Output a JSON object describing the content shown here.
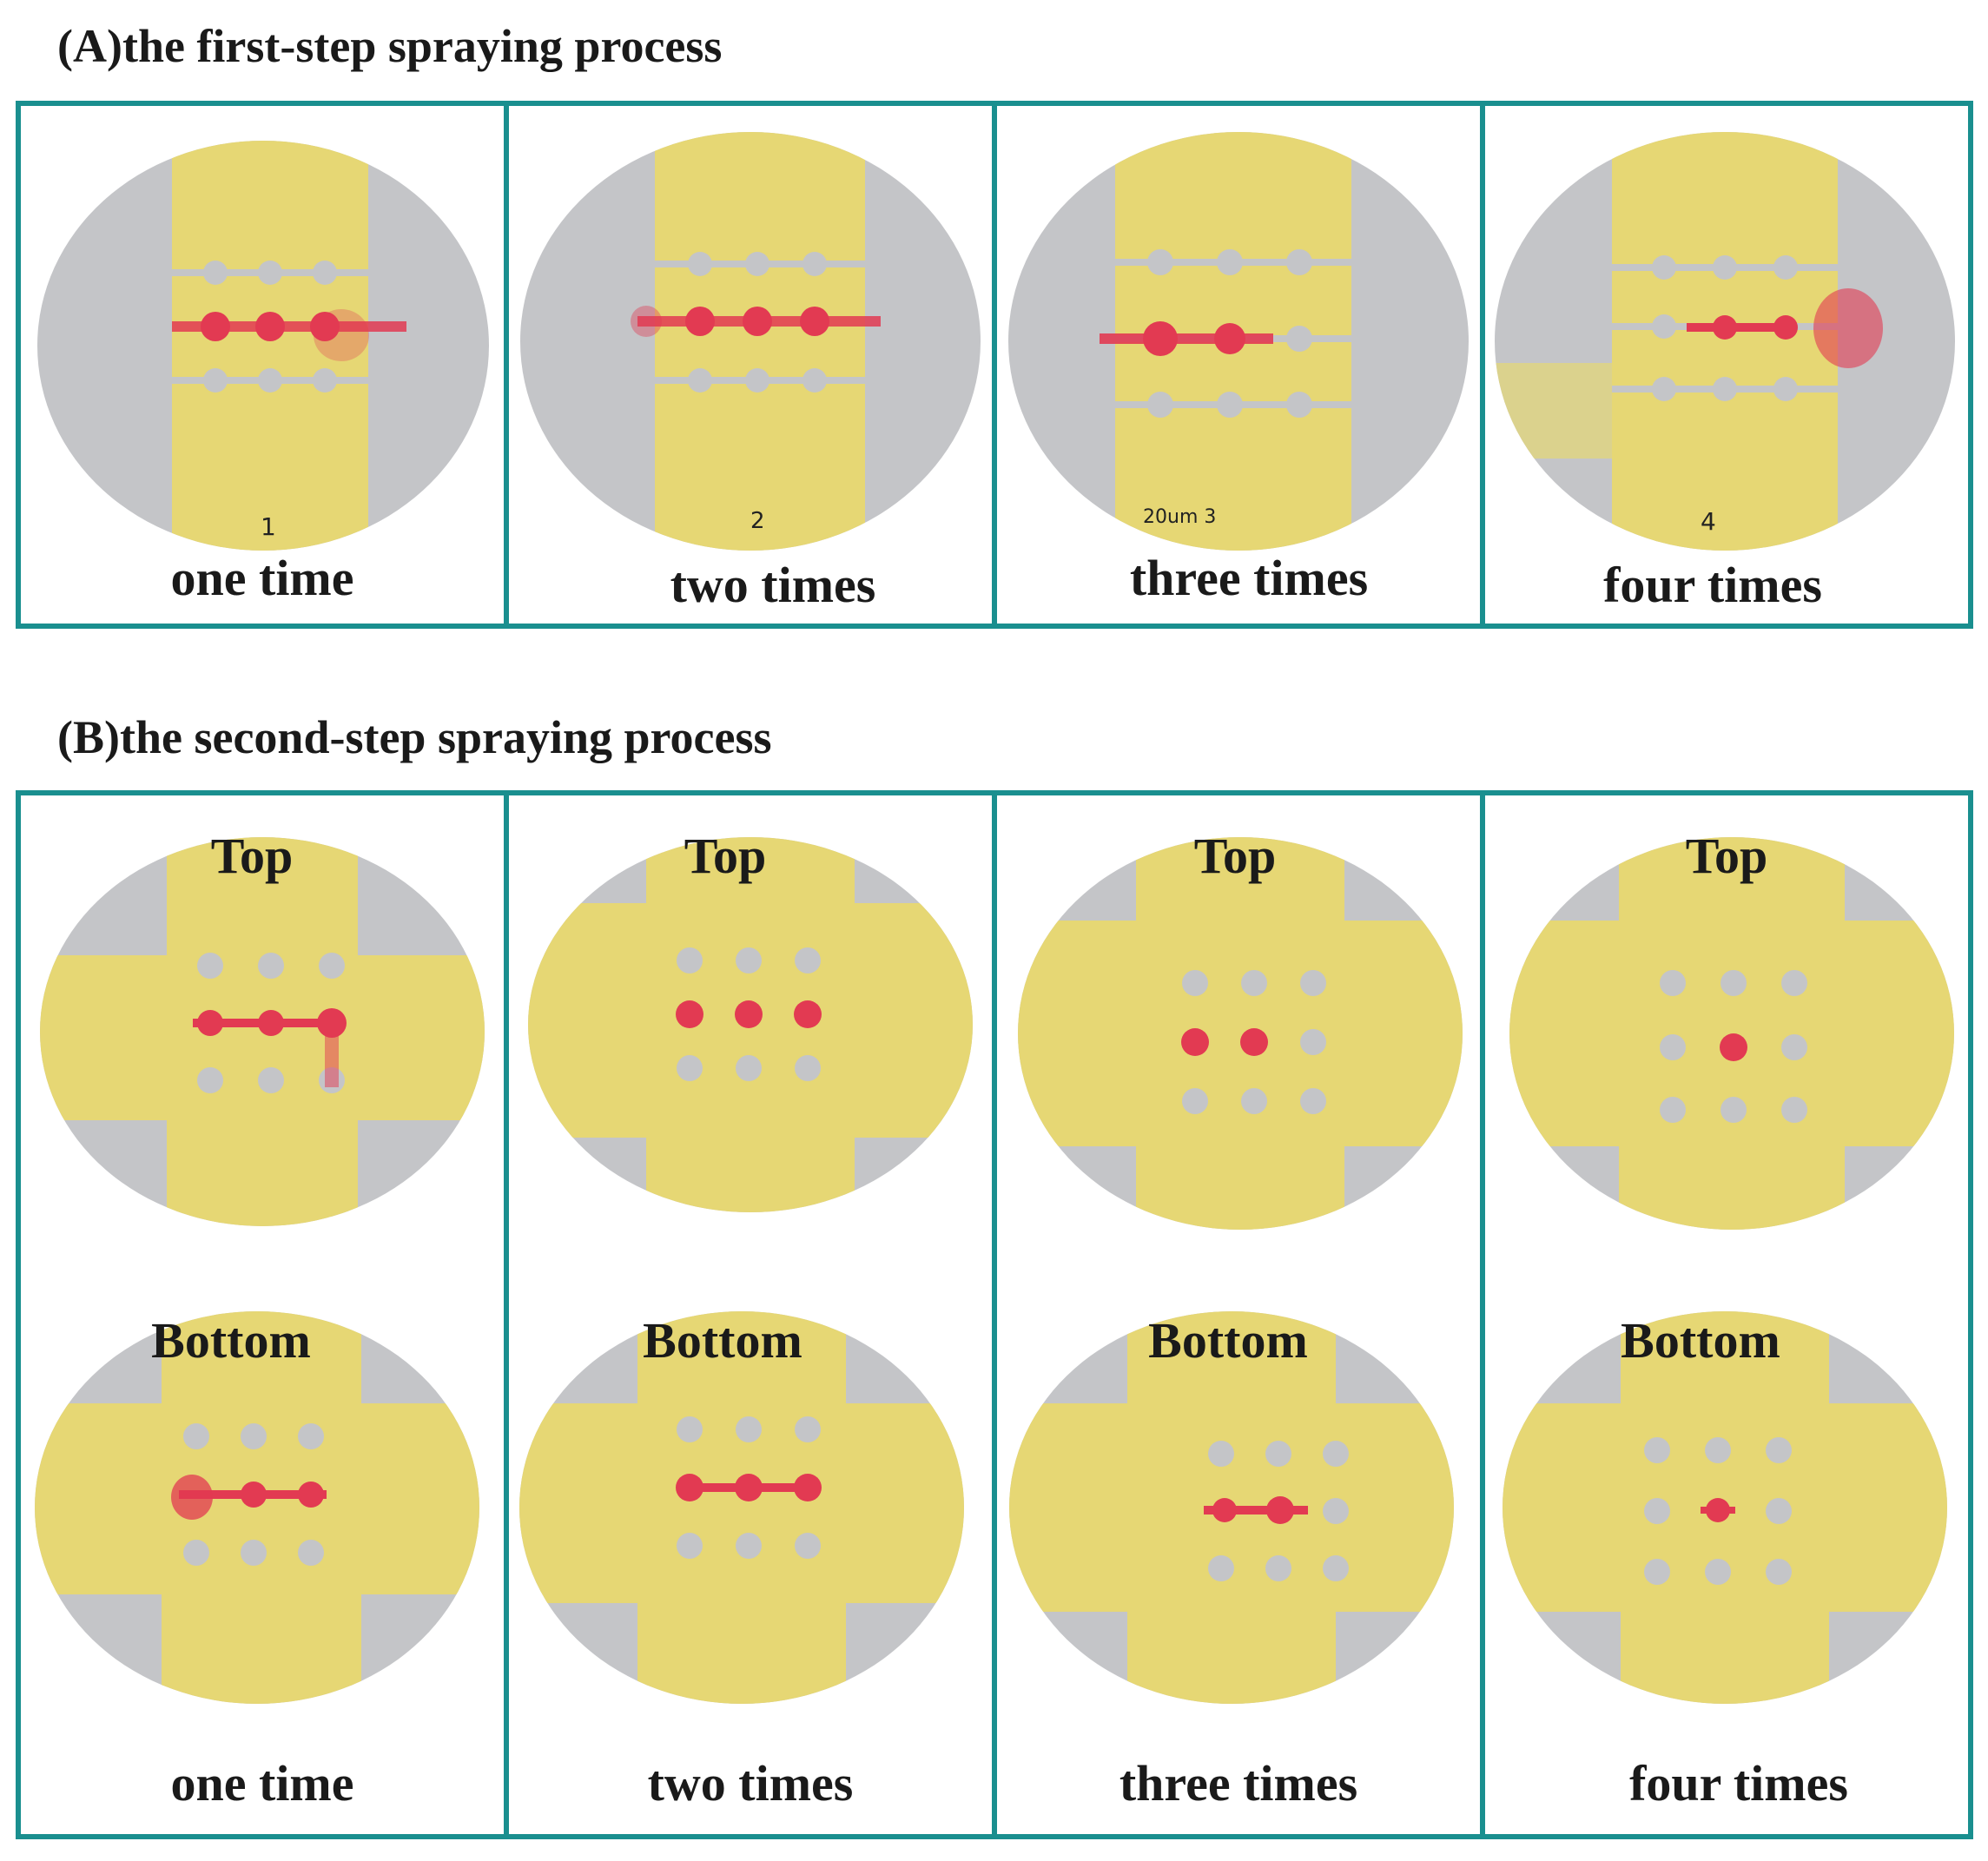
{
  "section_a": {
    "heading": "(A)the first-step spraying process",
    "panels": [
      {
        "caption": "one time",
        "mark": "1"
      },
      {
        "caption": "two times",
        "mark": "2"
      },
      {
        "caption": "three times",
        "mark": "20um 3"
      },
      {
        "caption": "four times",
        "mark": "4"
      }
    ]
  },
  "section_b": {
    "heading": "(B)the second-step spraying process",
    "top_label": "Top",
    "bottom_label": "Bottom",
    "panels": [
      {
        "caption": "one time"
      },
      {
        "caption": "two times"
      },
      {
        "caption": "three times"
      },
      {
        "caption": "four times"
      }
    ]
  },
  "colors": {
    "frame": "#1a8f8f",
    "disc_gray": "#c4c5c8",
    "tape_yellow": "#e6d774",
    "stain_red": "#e23a52"
  }
}
